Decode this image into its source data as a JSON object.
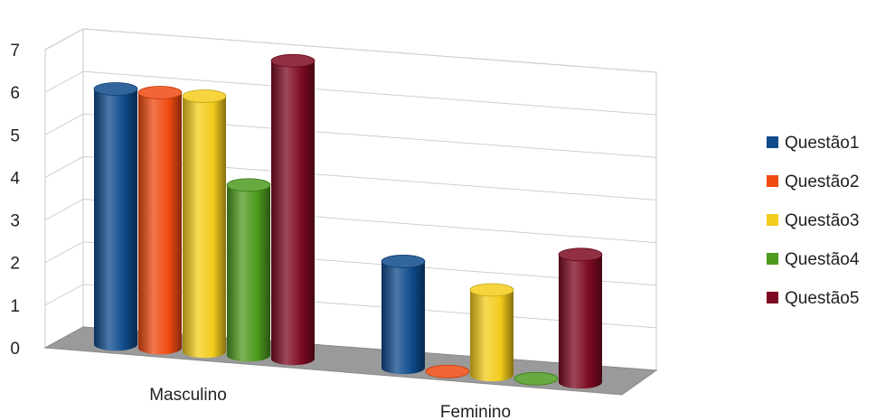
{
  "chart_data": {
    "type": "bar",
    "title": "",
    "xlabel": "",
    "ylabel": "",
    "categories": [
      "Masculino",
      "Feminino"
    ],
    "series": [
      {
        "name": "Questão1",
        "color": "#0f4a8c",
        "values": [
          6,
          2.5
        ]
      },
      {
        "name": "Questão2",
        "color": "#f04a10",
        "values": [
          6,
          0
        ]
      },
      {
        "name": "Questão3",
        "color": "#f3cc1c",
        "values": [
          6,
          2
        ]
      },
      {
        "name": "Questão4",
        "color": "#4d9a1e",
        "values": [
          4,
          0
        ]
      },
      {
        "name": "Questão5",
        "color": "#7d0a22",
        "values": [
          7,
          3
        ]
      }
    ],
    "ylim": [
      0,
      7
    ],
    "yticks": [
      "0",
      "1",
      "2",
      "3",
      "4",
      "5",
      "6",
      "7"
    ],
    "grid": true,
    "legend_position": "right",
    "style": "3d-cylinder"
  }
}
